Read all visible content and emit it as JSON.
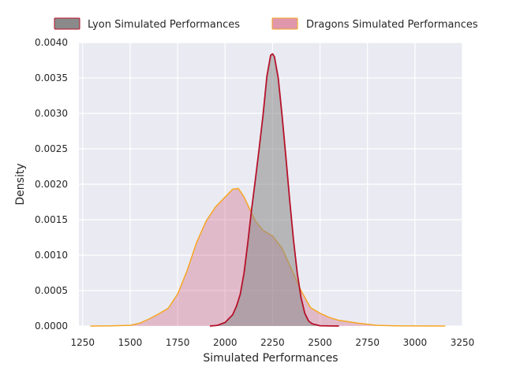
{
  "chart_data": {
    "type": "area",
    "title": "",
    "xlabel": "Simulated Performances",
    "ylabel": "Density",
    "xlim": [
      1230,
      3250
    ],
    "ylim": [
      0,
      0.004
    ],
    "xticks": [
      1250,
      1500,
      1750,
      2000,
      2250,
      2500,
      2750,
      3000,
      3250
    ],
    "yticks": [
      0.0,
      0.0005,
      0.001,
      0.0015,
      0.002,
      0.0025,
      0.003,
      0.0035,
      0.004
    ],
    "xtick_labels": [
      "1250",
      "1500",
      "1750",
      "2000",
      "2250",
      "2500",
      "2750",
      "3000",
      "3250"
    ],
    "ytick_labels": [
      "0.0000",
      "0.0005",
      "0.0010",
      "0.0015",
      "0.0020",
      "0.0025",
      "0.0030",
      "0.0035",
      "0.0040"
    ],
    "grid": true,
    "legend_position": "top",
    "series": [
      {
        "name": "Lyon Simulated Performances",
        "fill_color": "#8a8a8a",
        "line_color": "#b5122a",
        "fill_opacity": 0.55,
        "x": [
          1920,
          1960,
          2000,
          2040,
          2060,
          2080,
          2100,
          2120,
          2140,
          2160,
          2180,
          2200,
          2220,
          2240,
          2250,
          2260,
          2280,
          2300,
          2320,
          2340,
          2360,
          2380,
          2400,
          2420,
          2440,
          2460,
          2500,
          2550,
          2600
        ],
        "y": [
          0,
          1e-05,
          5e-05,
          0.00016,
          0.00028,
          0.00045,
          0.00075,
          0.00118,
          0.00165,
          0.00208,
          0.00252,
          0.00298,
          0.00352,
          0.00382,
          0.00384,
          0.0038,
          0.0035,
          0.00298,
          0.0024,
          0.00178,
          0.00122,
          0.00075,
          0.0004,
          0.00018,
          7e-05,
          3e-05,
          5e-06,
          1e-06,
          0
        ]
      },
      {
        "name": "Dragons Simulated Performances",
        "fill_color": "#d06080",
        "line_color": "#f5a623",
        "fill_opacity": 0.35,
        "x": [
          1290,
          1400,
          1500,
          1550,
          1600,
          1650,
          1700,
          1750,
          1800,
          1850,
          1900,
          1950,
          2000,
          2040,
          2070,
          2100,
          2130,
          2160,
          2200,
          2250,
          2300,
          2350,
          2400,
          2450,
          2500,
          2550,
          2600,
          2700,
          2800,
          2900,
          3000,
          3160
        ],
        "y": [
          0,
          2e-06,
          1e-05,
          4e-05,
          0.0001,
          0.00017,
          0.00025,
          0.00045,
          0.00078,
          0.00118,
          0.00148,
          0.00168,
          0.00182,
          0.00193,
          0.00194,
          0.00182,
          0.00165,
          0.00148,
          0.00135,
          0.00127,
          0.0011,
          0.0008,
          0.0005,
          0.00026,
          0.00018,
          0.00012,
          8e-05,
          4e-05,
          1e-05,
          3e-06,
          1e-06,
          0
        ]
      }
    ]
  }
}
